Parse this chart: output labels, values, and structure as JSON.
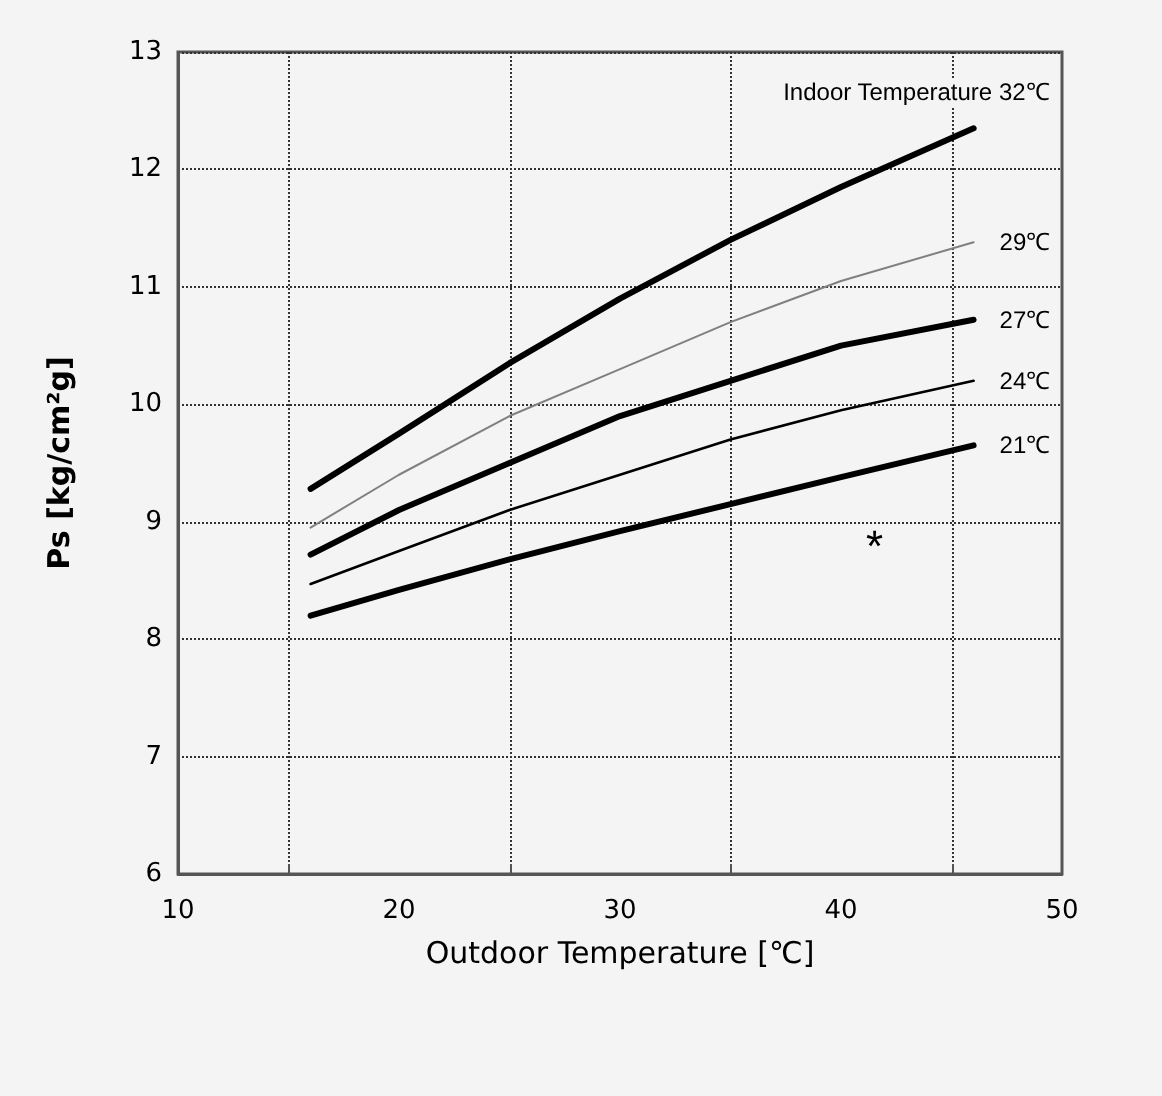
{
  "chart_data": {
    "type": "line",
    "xlabel": "Outdoor Temperature [℃]",
    "ylabel": "Ps [kg/cm²g]",
    "x": [
      16,
      20,
      25,
      30,
      35,
      40,
      46
    ],
    "series": [
      {
        "name": "Indoor Temperature 32℃",
        "color": "#000000",
        "values": [
          9.28,
          9.75,
          10.35,
          10.9,
          11.4,
          11.85,
          12.35
        ]
      },
      {
        "name": "29℃",
        "color": "#808080",
        "values": [
          8.95,
          9.4,
          9.9,
          10.3,
          10.7,
          11.05,
          11.38
        ]
      },
      {
        "name": "27℃",
        "color": "#000000",
        "values": [
          8.72,
          9.1,
          9.5,
          9.9,
          10.2,
          10.5,
          10.72
        ]
      },
      {
        "name": "24℃",
        "color": "#000000",
        "values": [
          8.47,
          8.75,
          9.1,
          9.4,
          9.7,
          9.95,
          10.2
        ]
      },
      {
        "name": "21℃",
        "color": "#000000",
        "values": [
          8.2,
          8.42,
          8.68,
          8.92,
          9.15,
          9.38,
          9.65
        ]
      }
    ],
    "xlim": [
      10,
      50
    ],
    "xticks": [
      10,
      20,
      30,
      40,
      50
    ],
    "ylim": [
      6,
      13
    ],
    "yticks": [
      6,
      7,
      8,
      9,
      10,
      11,
      12,
      13
    ],
    "grid": true,
    "legend": false,
    "marker": "none",
    "line_style": "solid",
    "annotations": [
      "*"
    ]
  }
}
